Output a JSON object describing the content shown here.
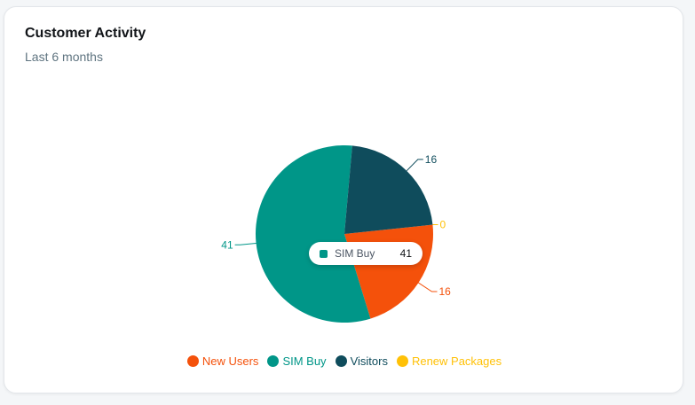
{
  "card": {
    "title": "Customer Activity",
    "subtitle": "Last 6 months"
  },
  "colors": {
    "New Users": "#f4510b",
    "SIM Buy": "#009688",
    "Visitors": "#0f4c5c",
    "Renew Packages": "#ffc107"
  },
  "tooltip": {
    "label": "SIM Buy",
    "value": "41"
  },
  "chart_data": {
    "type": "pie",
    "categories": [
      "New Users",
      "SIM Buy",
      "Visitors",
      "Renew Packages"
    ],
    "values": [
      16,
      41,
      16,
      0
    ],
    "data_labels": [
      "16",
      "41",
      "16",
      "0"
    ],
    "legend_position": "bottom"
  }
}
